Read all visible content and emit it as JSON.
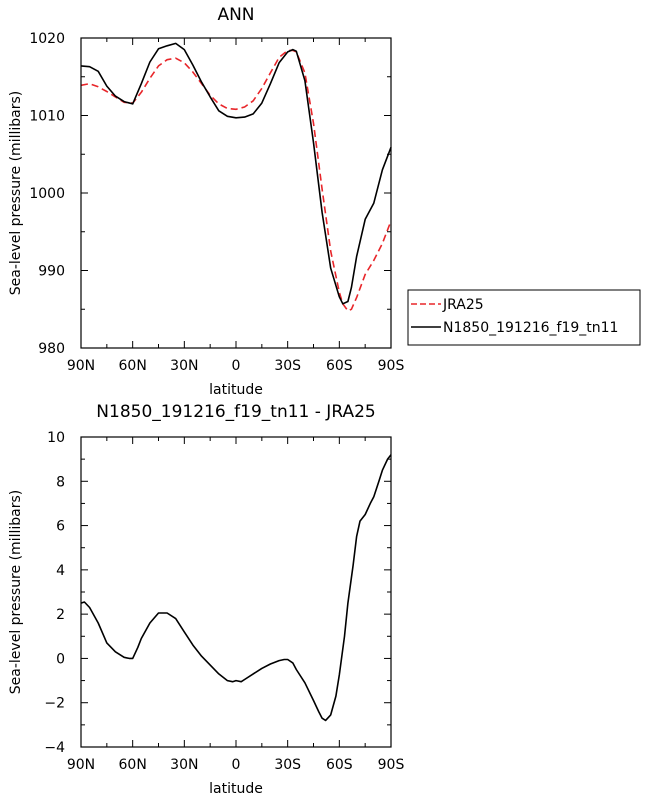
{
  "chart_data": [
    {
      "type": "line",
      "title": "ANN",
      "xlabel": "latitude",
      "ylabel": "Sea-level pressure (millibars)",
      "xlim": [
        90,
        -90
      ],
      "ylim": [
        980,
        1020
      ],
      "xticks": [
        90,
        60,
        30,
        0,
        -30,
        -60,
        -90
      ],
      "xtick_labels": [
        "90N",
        "60N",
        "30N",
        "0",
        "30S",
        "60S",
        "90S"
      ],
      "yticks": [
        980,
        990,
        1000,
        1010,
        1020
      ],
      "ytick_labels": [
        "980",
        "990",
        "1000",
        "1010",
        "1020"
      ],
      "grid": false,
      "legend_position": "right",
      "series": [
        {
          "name": "JRA25",
          "color": "#e8262a",
          "style": "dashed",
          "x": [
            90,
            85,
            80,
            75,
            70,
            65,
            60,
            55,
            50,
            45,
            40,
            35,
            30,
            25,
            20,
            15,
            10,
            5,
            0,
            -5,
            -10,
            -15,
            -20,
            -25,
            -30,
            -33,
            -35,
            -40,
            -45,
            -50,
            -55,
            -60,
            -62,
            -65,
            -67,
            -70,
            -75,
            -80,
            -85,
            -90
          ],
          "values": [
            1013.9,
            1014.1,
            1013.7,
            1013.1,
            1012.4,
            1011.7,
            1011.6,
            1013.0,
            1014.8,
            1016.4,
            1017.2,
            1017.4,
            1016.8,
            1015.6,
            1014.1,
            1012.6,
            1011.5,
            1010.9,
            1010.8,
            1011.1,
            1011.9,
            1013.5,
            1015.5,
            1017.5,
            1018.4,
            1018.4,
            1018.2,
            1015.5,
            1009.0,
            1000.5,
            992.5,
            987.2,
            985.7,
            984.8,
            985.0,
            986.5,
            989.5,
            991.3,
            993.5,
            996.4
          ]
        },
        {
          "name": "N1850_191216_f19_tn11",
          "color": "#000000",
          "style": "solid",
          "x": [
            90,
            85,
            80,
            75,
            70,
            65,
            60,
            55,
            50,
            45,
            40,
            35,
            30,
            25,
            20,
            15,
            10,
            5,
            0,
            -5,
            -10,
            -15,
            -20,
            -25,
            -30,
            -33,
            -35,
            -40,
            -45,
            -50,
            -55,
            -60,
            -62,
            -65,
            -67,
            -70,
            -75,
            -80,
            -85,
            -90
          ],
          "values": [
            1016.4,
            1016.3,
            1015.7,
            1013.8,
            1012.5,
            1011.8,
            1011.5,
            1014.1,
            1016.9,
            1018.6,
            1019.0,
            1019.3,
            1018.5,
            1016.5,
            1014.3,
            1012.4,
            1010.6,
            1009.9,
            1009.7,
            1009.8,
            1010.2,
            1011.6,
            1014.1,
            1016.8,
            1018.2,
            1018.5,
            1018.3,
            1014.5,
            1006.5,
            997.5,
            990.3,
            986.6,
            985.7,
            986.0,
            987.8,
            991.8,
            996.6,
            998.7,
            1003.0,
            1005.9
          ]
        }
      ]
    },
    {
      "type": "line",
      "title": "N1850_191216_f19_tn11 - JRA25",
      "xlabel": "latitude",
      "ylabel": "Sea-level pressure (millibars)",
      "xlim": [
        90,
        -90
      ],
      "ylim": [
        -4,
        10
      ],
      "xticks": [
        90,
        60,
        30,
        0,
        -30,
        -60,
        -90
      ],
      "xtick_labels": [
        "90N",
        "60N",
        "30N",
        "0",
        "30S",
        "60S",
        "90S"
      ],
      "yticks": [
        -4,
        -2,
        0,
        2,
        4,
        6,
        8,
        10
      ],
      "ytick_labels": [
        "−4",
        "−2",
        "0",
        "2",
        "4",
        "6",
        "8",
        "10"
      ],
      "grid": false,
      "series": [
        {
          "color": "#000000",
          "style": "solid",
          "x": [
            90,
            88,
            85,
            80,
            75,
            70,
            65,
            62,
            60,
            57,
            55,
            50,
            45,
            40,
            35,
            30,
            25,
            20,
            15,
            10,
            5,
            2,
            0,
            -3,
            -5,
            -10,
            -15,
            -20,
            -25,
            -28,
            -30,
            -33,
            -35,
            -40,
            -45,
            -48,
            -50,
            -52,
            -55,
            -58,
            -60,
            -63,
            -65,
            -68,
            -70,
            -72,
            -75,
            -78,
            -80,
            -83,
            -85,
            -88,
            -90
          ],
          "values": [
            2.5,
            2.55,
            2.3,
            1.6,
            0.7,
            0.3,
            0.05,
            0.0,
            0.0,
            0.5,
            0.9,
            1.6,
            2.05,
            2.05,
            1.8,
            1.2,
            0.6,
            0.1,
            -0.3,
            -0.7,
            -1.0,
            -1.05,
            -1.0,
            -1.05,
            -0.95,
            -0.7,
            -0.45,
            -0.25,
            -0.1,
            -0.05,
            -0.05,
            -0.2,
            -0.5,
            -1.1,
            -1.9,
            -2.4,
            -2.7,
            -2.8,
            -2.55,
            -1.7,
            -0.75,
            1.0,
            2.5,
            4.2,
            5.5,
            6.2,
            6.5,
            7.0,
            7.3,
            8.0,
            8.5,
            9.0,
            9.2
          ]
        }
      ]
    }
  ]
}
